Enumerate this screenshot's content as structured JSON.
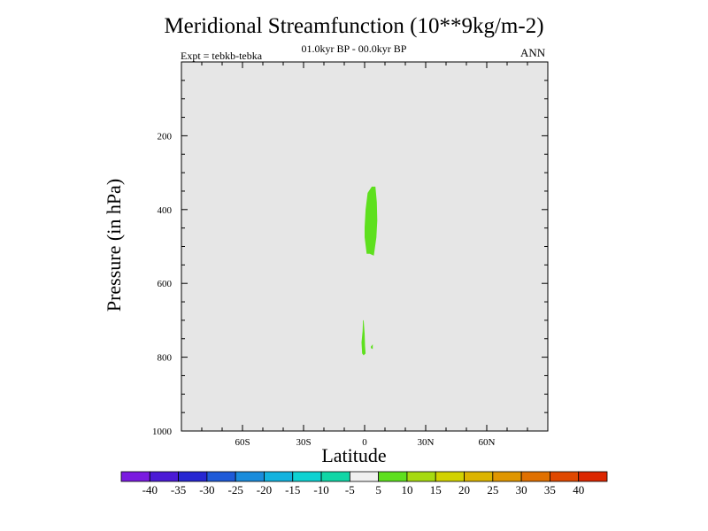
{
  "chart_data": {
    "type": "contour",
    "title": "Meridional Streamfunction (10**9kg/m-2)",
    "subtitle": "01.0kyr BP - 00.0kyr BP",
    "experiment": "Expt = tebkb-tebka",
    "season": "ANN",
    "xlabel": "Latitude",
    "ylabel": "Pressure (in hPa)",
    "xlim": [
      -90,
      90
    ],
    "ylim": [
      1000,
      0
    ],
    "x_ticks": [
      {
        "value": -60,
        "label": "60S"
      },
      {
        "value": -30,
        "label": "30S"
      },
      {
        "value": 0,
        "label": "0"
      },
      {
        "value": 30,
        "label": "30N"
      },
      {
        "value": 60,
        "label": "60N"
      }
    ],
    "y_ticks": [
      {
        "value": 200,
        "label": "200"
      },
      {
        "value": 400,
        "label": "400"
      },
      {
        "value": 600,
        "label": "600"
      },
      {
        "value": 800,
        "label": "800"
      },
      {
        "value": 1000,
        "label": "1000"
      }
    ],
    "background_color": "#e6e6e6",
    "regions": [
      {
        "name": "upper-positive-cell",
        "level": "5 to 10",
        "color": "#5ee01e",
        "points": [
          [
            0,
            448
          ],
          [
            0.5,
            400
          ],
          [
            1.5,
            355
          ],
          [
            3.5,
            338
          ],
          [
            5.3,
            338
          ],
          [
            6,
            380
          ],
          [
            6.2,
            430
          ],
          [
            5.8,
            475
          ],
          [
            4.5,
            525
          ],
          [
            2.5,
            520
          ],
          [
            1,
            520
          ],
          [
            0,
            475
          ]
        ]
      },
      {
        "name": "lower-positive-cell",
        "level": "5 to 10",
        "color": "#5ee01e",
        "points": [
          [
            -1.2,
            790
          ],
          [
            -1.5,
            760
          ],
          [
            -1,
            730
          ],
          [
            -0.8,
            700
          ],
          [
            -0.5,
            700
          ],
          [
            0,
            735
          ],
          [
            0.2,
            770
          ],
          [
            0.5,
            790
          ],
          [
            -0.5,
            795
          ]
        ]
      },
      {
        "name": "lower-positive-speck",
        "level": "5 to 10",
        "color": "#5ee01e",
        "points": [
          [
            3,
            772
          ],
          [
            4,
            765
          ],
          [
            4,
            778
          ],
          [
            3.2,
            776
          ]
        ]
      }
    ],
    "colorbar": {
      "levels": [
        -40,
        -35,
        -30,
        -25,
        -20,
        -15,
        -10,
        -5,
        5,
        10,
        15,
        20,
        25,
        30,
        35,
        40
      ],
      "labels": [
        "-40",
        "-35",
        "-30",
        "-25",
        "-20",
        "-15",
        "-10",
        "-5",
        "5",
        "10",
        "15",
        "20",
        "25",
        "30",
        "35",
        "40"
      ],
      "colors": [
        "#7a1ae0",
        "#4b1ad6",
        "#2626d2",
        "#1e5ad8",
        "#1a8cdc",
        "#12b2de",
        "#0ed2d2",
        "#10d6a6",
        "#f0f0f0",
        "#5ee01e",
        "#a6da10",
        "#d2d200",
        "#dcb400",
        "#e09600",
        "#e07000",
        "#e04800",
        "#dc2600"
      ]
    }
  }
}
